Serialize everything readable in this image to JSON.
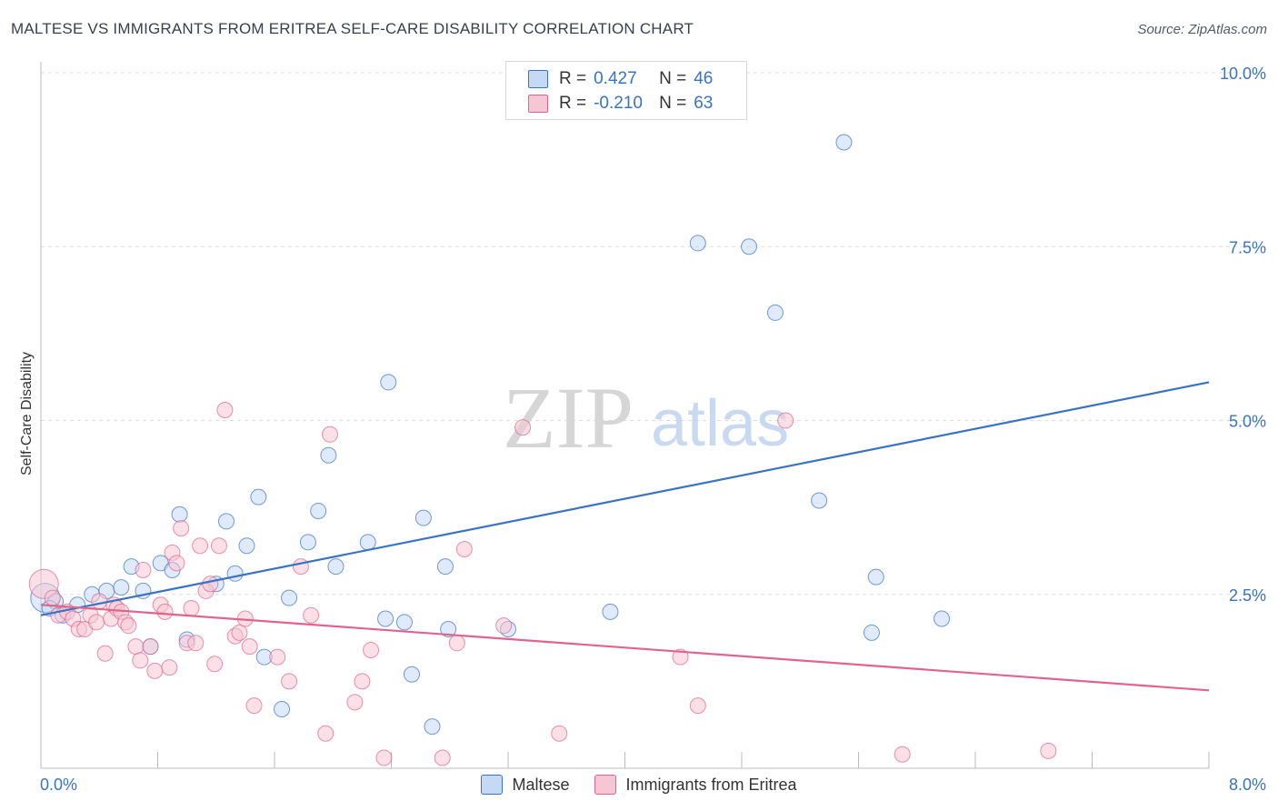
{
  "title": "MALTESE VS IMMIGRANTS FROM ERITREA SELF-CARE DISABILITY CORRELATION CHART",
  "source": "Source: ZipAtlas.com",
  "watermark": {
    "zip": "ZIP",
    "atlas": "atlas"
  },
  "colors": {
    "blue": "#3a72c4",
    "blue_fill": "#c5d9f5",
    "pink": "#e0648c",
    "pink_fill": "#f7c6d4",
    "grid": "#dddddd"
  },
  "legend": {
    "r_label": "R =",
    "n_label": "N =",
    "rows": [
      {
        "r": "0.427",
        "n": "46"
      },
      {
        "r": "-0.210",
        "n": "63"
      }
    ]
  },
  "chart_data": {
    "type": "scatter",
    "xlabel": "",
    "ylabel": "Self-Care Disability",
    "xlim": [
      0,
      8
    ],
    "ylim": [
      0,
      10
    ],
    "x_tick_labels": [
      "0.0%",
      "8.0%"
    ],
    "y_tick_labels": [
      "2.5%",
      "5.0%",
      "7.5%",
      "10.0%"
    ],
    "y_ticks": [
      2.5,
      5.0,
      7.5,
      10.0
    ],
    "grid": true,
    "legend_position": "top-center",
    "series": [
      {
        "name": "Maltese",
        "trend": {
          "x": [
            0,
            8
          ],
          "y": [
            2.2,
            5.55
          ]
        },
        "points": [
          [
            0.03,
            2.45
          ],
          [
            0.1,
            2.4
          ],
          [
            0.15,
            2.2
          ],
          [
            0.25,
            2.35
          ],
          [
            0.35,
            2.5
          ],
          [
            0.45,
            2.55
          ],
          [
            0.55,
            2.6
          ],
          [
            0.62,
            2.9
          ],
          [
            0.7,
            2.55
          ],
          [
            0.75,
            1.75
          ],
          [
            0.82,
            2.95
          ],
          [
            0.9,
            2.85
          ],
          [
            0.95,
            3.65
          ],
          [
            1.0,
            1.85
          ],
          [
            1.2,
            2.65
          ],
          [
            1.27,
            3.55
          ],
          [
            1.33,
            2.8
          ],
          [
            1.41,
            3.2
          ],
          [
            1.49,
            3.9
          ],
          [
            1.53,
            1.6
          ],
          [
            1.7,
            2.45
          ],
          [
            1.65,
            0.85
          ],
          [
            1.83,
            3.25
          ],
          [
            1.9,
            3.7
          ],
          [
            1.97,
            4.5
          ],
          [
            2.02,
            2.9
          ],
          [
            2.24,
            3.25
          ],
          [
            2.36,
            2.15
          ],
          [
            2.38,
            5.55
          ],
          [
            2.49,
            2.1
          ],
          [
            2.54,
            1.35
          ],
          [
            2.62,
            3.6
          ],
          [
            2.68,
            0.6
          ],
          [
            2.77,
            2.9
          ],
          [
            2.79,
            2.0
          ],
          [
            3.2,
            2.0
          ],
          [
            3.9,
            2.25
          ],
          [
            4.5,
            7.55
          ],
          [
            4.85,
            7.5
          ],
          [
            5.03,
            6.55
          ],
          [
            5.33,
            3.85
          ],
          [
            5.5,
            9.0
          ],
          [
            5.69,
            1.95
          ],
          [
            5.72,
            2.75
          ],
          [
            6.17,
            2.15
          ],
          [
            0.06,
            2.3
          ]
        ]
      },
      {
        "name": "Immigrants from Eritrea",
        "trend": {
          "x": [
            0,
            8
          ],
          "y": [
            2.35,
            1.12
          ]
        },
        "points": [
          [
            0.02,
            2.65
          ],
          [
            0.08,
            2.45
          ],
          [
            0.12,
            2.2
          ],
          [
            0.18,
            2.25
          ],
          [
            0.22,
            2.15
          ],
          [
            0.26,
            2.0
          ],
          [
            0.3,
            2.0
          ],
          [
            0.34,
            2.2
          ],
          [
            0.38,
            2.1
          ],
          [
            0.4,
            2.4
          ],
          [
            0.44,
            1.65
          ],
          [
            0.48,
            2.15
          ],
          [
            0.5,
            2.35
          ],
          [
            0.52,
            2.3
          ],
          [
            0.55,
            2.25
          ],
          [
            0.58,
            2.1
          ],
          [
            0.6,
            2.05
          ],
          [
            0.65,
            1.75
          ],
          [
            0.68,
            1.55
          ],
          [
            0.7,
            2.85
          ],
          [
            0.75,
            1.75
          ],
          [
            0.78,
            1.4
          ],
          [
            0.82,
            2.35
          ],
          [
            0.85,
            2.25
          ],
          [
            0.88,
            1.45
          ],
          [
            0.9,
            3.1
          ],
          [
            0.93,
            2.95
          ],
          [
            0.96,
            3.45
          ],
          [
            1.0,
            1.8
          ],
          [
            1.03,
            2.3
          ],
          [
            1.06,
            1.8
          ],
          [
            1.09,
            3.2
          ],
          [
            1.13,
            2.55
          ],
          [
            1.16,
            2.65
          ],
          [
            1.19,
            1.5
          ],
          [
            1.22,
            3.2
          ],
          [
            1.26,
            5.15
          ],
          [
            1.33,
            1.9
          ],
          [
            1.36,
            1.95
          ],
          [
            1.4,
            2.15
          ],
          [
            1.43,
            1.75
          ],
          [
            1.46,
            0.9
          ],
          [
            1.62,
            1.6
          ],
          [
            1.7,
            1.25
          ],
          [
            1.78,
            2.9
          ],
          [
            1.85,
            2.2
          ],
          [
            1.95,
            0.5
          ],
          [
            1.98,
            4.8
          ],
          [
            2.15,
            0.95
          ],
          [
            2.2,
            1.25
          ],
          [
            2.26,
            1.7
          ],
          [
            2.35,
            0.15
          ],
          [
            2.75,
            0.15
          ],
          [
            2.85,
            1.8
          ],
          [
            2.9,
            3.15
          ],
          [
            3.17,
            2.05
          ],
          [
            3.3,
            4.9
          ],
          [
            3.55,
            0.5
          ],
          [
            4.38,
            1.6
          ],
          [
            4.5,
            0.9
          ],
          [
            5.1,
            5.0
          ],
          [
            5.9,
            0.2
          ],
          [
            6.9,
            0.25
          ]
        ]
      }
    ]
  }
}
